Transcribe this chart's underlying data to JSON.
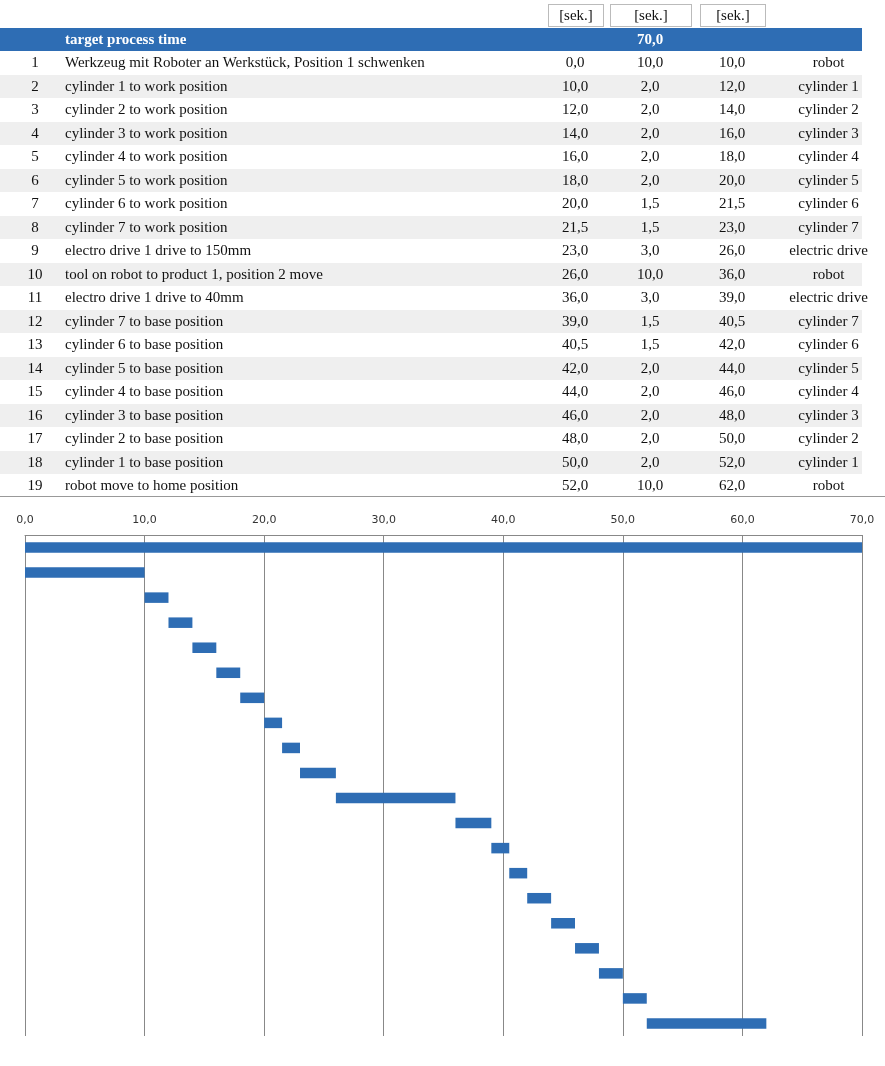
{
  "chart_data": {
    "type": "bar",
    "orientation": "horizontal",
    "tick_labels": "x",
    "grid": "x",
    "color": "#2e6db4",
    "categories": [
      null,
      null,
      null,
      null,
      null,
      null,
      null,
      null,
      null,
      null,
      null,
      null,
      null,
      null,
      null,
      null,
      null,
      null,
      null,
      null
    ],
    "base": [
      0,
      0,
      10,
      12,
      14,
      16,
      18,
      20,
      21.5,
      23,
      26,
      36,
      39,
      40.5,
      42,
      44,
      46,
      48,
      50,
      52
    ],
    "values": [
      70,
      10,
      2,
      2,
      2,
      2,
      2,
      1.5,
      1.5,
      3,
      10,
      3,
      1.5,
      1.5,
      2,
      2,
      2,
      2,
      2,
      10
    ],
    "xlim": [
      0,
      70
    ],
    "xticks": [
      {
        "value": 0,
        "label": "0,0"
      },
      {
        "value": 10,
        "label": "10,0"
      },
      {
        "value": 20,
        "label": "20,0"
      },
      {
        "value": 30,
        "label": "30,0"
      },
      {
        "value": 40,
        "label": "40,0"
      },
      {
        "value": 50,
        "label": "50,0"
      },
      {
        "value": 60,
        "label": "60,0"
      },
      {
        "value": 70,
        "label": "70,0"
      }
    ],
    "annotations": [
      "[sek.]",
      "[sek.]",
      "[sek.]",
      "target process time",
      "Werkzeug mit Roboter an Werkstück, Position 1 schwenken",
      "cylinder 1 to work position",
      "cylinder 2 to work position",
      "cylinder 3 to work position",
      "cylinder 4 to work position",
      "cylinder 5 to work position",
      "cylinder 6 to work position",
      "cylinder 7 to work position",
      "electro drive 1 drive to 150mm",
      "tool on robot to product 1, position 2 move",
      "electro drive 1 drive to 40mm",
      "cylinder 7 to base position",
      "cylinder 6 to base position",
      "cylinder 5 to base position",
      "cylinder 4 to base position",
      "cylinder 3 to base position",
      "cylinder 2  to base position",
      "cylinder 1 to base position",
      "robot move to home position",
      "1",
      "2",
      "3",
      "4",
      "5",
      "6",
      "7",
      "8",
      "9",
      "10",
      "11",
      "12",
      "13",
      "14",
      "15",
      "16",
      "17",
      "18",
      "19",
      "robot",
      "cylinder 1",
      "cylinder 2",
      "cylinder 3",
      "cylinder 4",
      "cylinder 5",
      "cylinder 6",
      "cylinder 7",
      "electric drive",
      "robot",
      "electric drive",
      "cylinder 7",
      "cylinder 6",
      "cylinder 5",
      "cylinder 4",
      "cylinder 3",
      "cylinder 2",
      "cylinder 1",
      "robot",
      "0,0",
      "10,0",
      "10,0",
      "12,0",
      "12,0",
      "14,0",
      "14,0",
      "16,0",
      "16,0",
      "18,0",
      "18,0",
      "20,0",
      "20,0",
      "21,5",
      "21,5",
      "23,0",
      "23,0",
      "26,0",
      "26,0",
      "36,0",
      "36,0",
      "39,0",
      "39,0",
      "40,5",
      "40,5",
      "42,0",
      "42,0",
      "44,0",
      "44,0",
      "46,0",
      "46,0",
      "48,0",
      "48,0",
      "50,0",
      "50,0",
      "52,0",
      "52,0",
      "62,0",
      "70,0",
      "10,0",
      "2,0",
      "2,0",
      "2,0",
      "2,0",
      "2,0",
      "1,5",
      "1,5",
      "3,0",
      "10,0",
      "3,0",
      "1,5",
      "1,5",
      "2,0",
      "2,0",
      "2,0",
      "2,0",
      "2,0",
      "10,0"
    ]
  }
}
